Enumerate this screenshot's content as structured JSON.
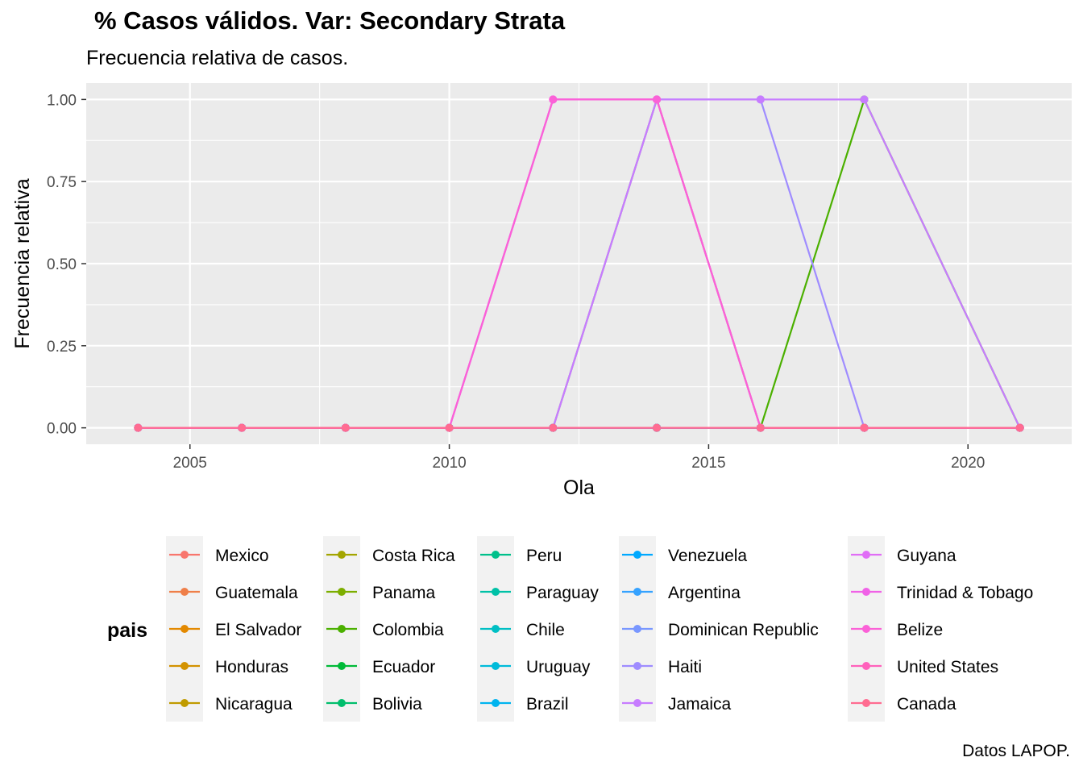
{
  "chart_data": {
    "type": "line",
    "title": "% Casos válidos. Var: Secondary Strata",
    "subtitle": "Frecuencia relativa de casos.",
    "caption": "Datos LAPOP.",
    "xlabel": "Ola",
    "ylabel": "Frecuencia relativa",
    "xlim": [
      2003,
      2022
    ],
    "ylim": [
      -0.05,
      1.05
    ],
    "x_ticks": [
      2005,
      2010,
      2015,
      2020
    ],
    "x_tick_labels": [
      "2005",
      "2010",
      "2015",
      "2020"
    ],
    "y_ticks": [
      0,
      0.25,
      0.5,
      0.75,
      1
    ],
    "y_tick_labels": [
      "0.00",
      "0.25",
      "0.50",
      "0.75",
      "1.00"
    ],
    "grid": true,
    "legend_title": "pais",
    "legend_position": "bottom",
    "series": [
      {
        "name": "Mexico",
        "color": "#F8766D",
        "x": [
          2004,
          2006,
          2008,
          2010,
          2012,
          2014,
          2016,
          2018,
          2021
        ],
        "y": [
          0,
          0,
          0,
          0,
          0,
          0,
          0,
          0,
          0
        ]
      },
      {
        "name": "Guatemala",
        "color": "#EF7F49",
        "x": [
          2004,
          2006,
          2008,
          2010,
          2012,
          2014,
          2016,
          2018,
          2021
        ],
        "y": [
          0,
          0,
          0,
          0,
          0,
          0,
          0,
          0,
          0
        ]
      },
      {
        "name": "El Salvador",
        "color": "#E38900",
        "x": [
          2004,
          2006,
          2008,
          2010,
          2012,
          2014,
          2016,
          2018,
          2021
        ],
        "y": [
          0,
          0,
          0,
          0,
          0,
          0,
          0,
          0,
          0
        ]
      },
      {
        "name": "Honduras",
        "color": "#D39200",
        "x": [
          2004,
          2006,
          2008,
          2010,
          2012,
          2014,
          2016,
          2018,
          2021
        ],
        "y": [
          0,
          0,
          0,
          0,
          0,
          0,
          0,
          0,
          0
        ]
      },
      {
        "name": "Nicaragua",
        "color": "#C09B00",
        "x": [
          2004,
          2006,
          2008,
          2010,
          2012,
          2014,
          2016,
          2018,
          2021
        ],
        "y": [
          0,
          0,
          0,
          0,
          0,
          0,
          0,
          0,
          0
        ]
      },
      {
        "name": "Costa Rica",
        "color": "#A3A500",
        "x": [
          2004,
          2006,
          2008,
          2010,
          2012,
          2014,
          2016,
          2018,
          2021
        ],
        "y": [
          0,
          0,
          0,
          0,
          0,
          1,
          0,
          0,
          0
        ]
      },
      {
        "name": "Panama",
        "color": "#7CAE00",
        "x": [
          2004,
          2006,
          2008,
          2010,
          2012,
          2014,
          2016,
          2018,
          2021
        ],
        "y": [
          0,
          0,
          0,
          0,
          0,
          0,
          0,
          0,
          0
        ]
      },
      {
        "name": "Colombia",
        "color": "#4BB000",
        "x": [
          2004,
          2006,
          2008,
          2010,
          2012,
          2014,
          2016,
          2018,
          2021
        ],
        "y": [
          0,
          0,
          0,
          0,
          0,
          0,
          0,
          1,
          0
        ]
      },
      {
        "name": "Ecuador",
        "color": "#00BA38",
        "x": [
          2004,
          2006,
          2008,
          2010,
          2012,
          2014,
          2016,
          2018,
          2021
        ],
        "y": [
          0,
          0,
          0,
          0,
          0,
          0,
          0,
          0,
          0
        ]
      },
      {
        "name": "Bolivia",
        "color": "#00BE6C",
        "x": [
          2004,
          2006,
          2008,
          2010,
          2012,
          2014,
          2016,
          2018,
          2021
        ],
        "y": [
          0,
          0,
          0,
          0,
          0,
          0,
          0,
          0,
          0
        ]
      },
      {
        "name": "Peru",
        "color": "#00C08B",
        "x": [
          2004,
          2006,
          2008,
          2010,
          2012,
          2014,
          2016,
          2018,
          2021
        ],
        "y": [
          0,
          0,
          0,
          0,
          0,
          0,
          0,
          0,
          0
        ]
      },
      {
        "name": "Paraguay",
        "color": "#00C1A7",
        "x": [
          2004,
          2006,
          2008,
          2010,
          2012,
          2014,
          2016,
          2018,
          2021
        ],
        "y": [
          0,
          0,
          0,
          0,
          0,
          0,
          0,
          0,
          0
        ]
      },
      {
        "name": "Chile",
        "color": "#00BFC4",
        "x": [
          2004,
          2006,
          2008,
          2010,
          2012,
          2014,
          2016,
          2018,
          2021
        ],
        "y": [
          0,
          0,
          0,
          0,
          0,
          0,
          0,
          0,
          0
        ]
      },
      {
        "name": "Uruguay",
        "color": "#00BBDA",
        "x": [
          2004,
          2006,
          2008,
          2010,
          2012,
          2014,
          2016,
          2018,
          2021
        ],
        "y": [
          0,
          0,
          0,
          0,
          0,
          0,
          0,
          0,
          0
        ]
      },
      {
        "name": "Brazil",
        "color": "#00B4EF",
        "x": [
          2004,
          2006,
          2008,
          2010,
          2012,
          2014,
          2016,
          2018,
          2021
        ],
        "y": [
          0,
          0,
          0,
          0,
          0,
          0,
          0,
          0,
          0
        ]
      },
      {
        "name": "Venezuela",
        "color": "#00A9FF",
        "x": [
          2004,
          2006,
          2008,
          2010,
          2012,
          2014,
          2016,
          2018,
          2021
        ],
        "y": [
          0,
          0,
          0,
          0,
          0,
          0,
          0,
          0,
          0
        ]
      },
      {
        "name": "Argentina",
        "color": "#35A2FF",
        "x": [
          2004,
          2006,
          2008,
          2010,
          2012,
          2014,
          2016,
          2018,
          2021
        ],
        "y": [
          0,
          0,
          0,
          0,
          0,
          0,
          0,
          0,
          0
        ]
      },
      {
        "name": "Dominican Republic",
        "color": "#7997FF",
        "x": [
          2004,
          2006,
          2008,
          2010,
          2012,
          2014,
          2016,
          2018,
          2021
        ],
        "y": [
          0,
          0,
          0,
          0,
          0,
          0,
          0,
          0,
          0
        ]
      },
      {
        "name": "Haiti",
        "color": "#9F8CFF",
        "x": [
          2004,
          2006,
          2008,
          2010,
          2012,
          2014,
          2016,
          2018,
          2021
        ],
        "y": [
          0,
          0,
          0,
          0,
          0,
          1,
          1,
          0,
          0
        ]
      },
      {
        "name": "Jamaica",
        "color": "#C77CFF",
        "x": [
          2004,
          2006,
          2008,
          2010,
          2012,
          2014,
          2016,
          2018,
          2021
        ],
        "y": [
          0,
          0,
          0,
          0,
          0,
          1,
          1,
          1,
          0
        ]
      },
      {
        "name": "Guyana",
        "color": "#E06EF6",
        "x": [
          2004,
          2006,
          2008,
          2010,
          2012,
          2014,
          2016,
          2018,
          2021
        ],
        "y": [
          0,
          0,
          0,
          0,
          1,
          1,
          0,
          0,
          0
        ]
      },
      {
        "name": "Trinidad & Tobago",
        "color": "#F062E7",
        "x": [
          2004,
          2006,
          2008,
          2010,
          2012,
          2014,
          2016,
          2018,
          2021
        ],
        "y": [
          0,
          0,
          0,
          0,
          1,
          1,
          0,
          0,
          0
        ]
      },
      {
        "name": "Belize",
        "color": "#FB61D7",
        "x": [
          2004,
          2006,
          2008,
          2010,
          2012,
          2014,
          2016,
          2018,
          2021
        ],
        "y": [
          0,
          0,
          0,
          0,
          1,
          1,
          0,
          0,
          0
        ]
      },
      {
        "name": "United States",
        "color": "#FF62BC",
        "x": [
          2004,
          2006,
          2008,
          2010,
          2012,
          2014,
          2016,
          2018,
          2021
        ],
        "y": [
          0,
          0,
          0,
          0,
          0,
          0,
          0,
          0,
          0
        ]
      },
      {
        "name": "Canada",
        "color": "#FF6C91",
        "x": [
          2004,
          2006,
          2008,
          2010,
          2012,
          2014,
          2016,
          2018,
          2021
        ],
        "y": [
          0,
          0,
          0,
          0,
          0,
          0,
          0,
          0,
          0
        ]
      }
    ]
  }
}
